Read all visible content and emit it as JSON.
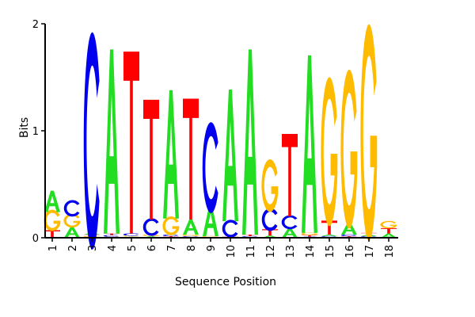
{
  "chart_data": {
    "type": "sequence-logo",
    "xlabel": "Sequence Position",
    "ylabel": "Bits",
    "ylim": [
      0,
      2
    ],
    "yticks": [
      "0",
      "1",
      "2"
    ],
    "positions": [
      "1",
      "2",
      "3",
      "4",
      "5",
      "6",
      "7",
      "8",
      "9",
      "10",
      "11",
      "12",
      "13",
      "14",
      "15",
      "16",
      "17",
      "18"
    ],
    "colors": {
      "A": "#22dd22",
      "C": "#0000ee",
      "G": "#ffbb00",
      "T": "#ff0000"
    },
    "columns": [
      [
        {
          "l": "T",
          "h": 0.07
        },
        {
          "l": "G",
          "h": 0.17
        },
        {
          "l": "A",
          "h": 0.2
        }
      ],
      [
        {
          "l": "A",
          "h": 0.1
        },
        {
          "l": "G",
          "h": 0.11
        },
        {
          "l": "C",
          "h": 0.13
        }
      ],
      [
        {
          "l": "G",
          "h": 0.015
        },
        {
          "l": "T",
          "h": 0.015
        },
        {
          "l": "A",
          "h": 0.015
        },
        {
          "l": "C",
          "h": 1.72
        }
      ],
      [
        {
          "l": "G",
          "h": 0.01
        },
        {
          "l": "C",
          "h": 0.015
        },
        {
          "l": "T",
          "h": 0.015
        },
        {
          "l": "A",
          "h": 1.72
        }
      ],
      [
        {
          "l": "A",
          "h": 0.01
        },
        {
          "l": "G",
          "h": 0.01
        },
        {
          "l": "C",
          "h": 0.02
        },
        {
          "l": "T",
          "h": 1.7
        }
      ],
      [
        {
          "l": "A",
          "h": 0.015
        },
        {
          "l": "G",
          "h": 0.015
        },
        {
          "l": "C",
          "h": 0.14
        },
        {
          "l": "T",
          "h": 1.12
        }
      ],
      [
        {
          "l": "T",
          "h": 0.015
        },
        {
          "l": "C",
          "h": 0.015
        },
        {
          "l": "G",
          "h": 0.15
        },
        {
          "l": "A",
          "h": 1.2
        }
      ],
      [
        {
          "l": "C",
          "h": 0.015
        },
        {
          "l": "G",
          "h": 0.015
        },
        {
          "l": "A",
          "h": 0.14
        },
        {
          "l": "T",
          "h": 1.13
        }
      ],
      [
        {
          "l": "G",
          "h": 0.015
        },
        {
          "l": "A",
          "h": 0.28
        },
        {
          "l": "C",
          "h": 0.72
        }
      ],
      [
        {
          "l": "T",
          "h": 0.015
        },
        {
          "l": "C",
          "h": 0.14
        },
        {
          "l": "A",
          "h": 1.23
        }
      ],
      [
        {
          "l": "C",
          "h": 0.015
        },
        {
          "l": "T",
          "h": 0.015
        },
        {
          "l": "A",
          "h": 1.73
        }
      ],
      [
        {
          "l": "A",
          "h": 0.02
        },
        {
          "l": "T",
          "h": 0.06
        },
        {
          "l": "C",
          "h": 0.18
        },
        {
          "l": "G",
          "h": 0.42
        }
      ],
      [
        {
          "l": "A",
          "h": 0.09
        },
        {
          "l": "C",
          "h": 0.11
        },
        {
          "l": "T",
          "h": 0.77
        }
      ],
      [
        {
          "l": "C",
          "h": 0.01
        },
        {
          "l": "T",
          "h": 0.015
        },
        {
          "l": "G",
          "h": 0.02
        },
        {
          "l": "A",
          "h": 1.66
        }
      ],
      [
        {
          "l": "C",
          "h": 0.015
        },
        {
          "l": "A",
          "h": 0.015
        },
        {
          "l": "T",
          "h": 0.13
        },
        {
          "l": "G",
          "h": 1.19
        }
      ],
      [
        {
          "l": "T",
          "h": 0.015
        },
        {
          "l": "C",
          "h": 0.015
        },
        {
          "l": "A",
          "h": 0.11
        },
        {
          "l": "G",
          "h": 1.27
        }
      ],
      [
        {
          "l": "C",
          "h": 0.015
        },
        {
          "l": "A",
          "h": 0.015
        },
        {
          "l": "T",
          "h": 0.015
        },
        {
          "l": "G",
          "h": 1.73
        }
      ],
      [
        {
          "l": "A",
          "h": 0.04
        },
        {
          "l": "T",
          "h": 0.05
        },
        {
          "l": "G",
          "h": 0.06
        }
      ]
    ]
  }
}
